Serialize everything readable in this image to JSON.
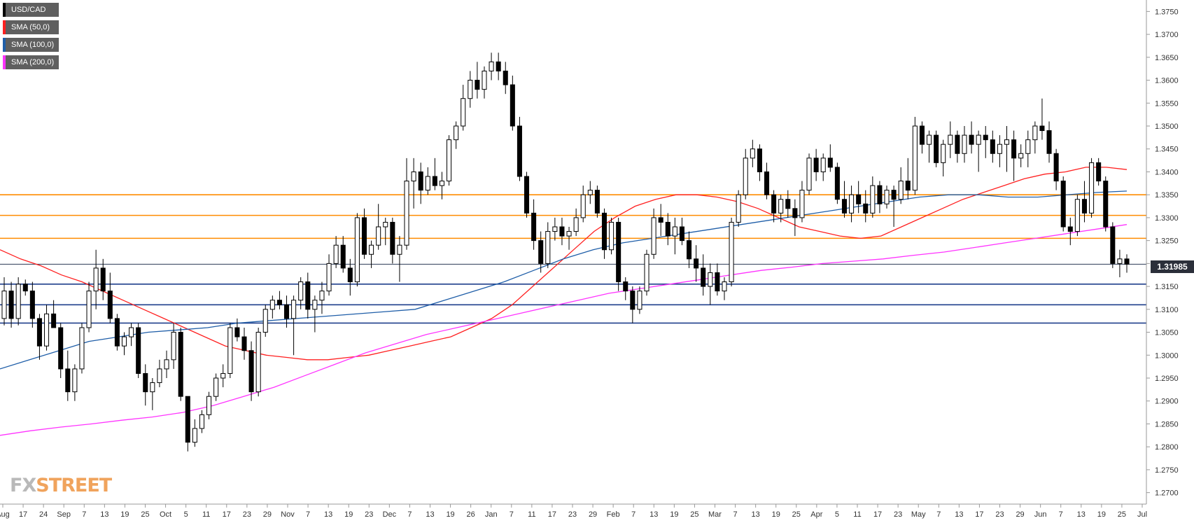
{
  "legend": [
    {
      "label": "USD/CAD",
      "color": "#000000"
    },
    {
      "label": "SMA (50,0)",
      "color": "#ff2020"
    },
    {
      "label": "SMA (100,0)",
      "color": "#1f5ea8"
    },
    {
      "label": "SMA (200,0)",
      "color": "#ff33ff"
    }
  ],
  "watermark": {
    "part1": "FX",
    "part2": "STREET"
  },
  "last_price_label": "1.31985",
  "chart_data": {
    "type": "candlestick",
    "title": "",
    "symbol": "USD/CAD",
    "ylim": [
      1.2675,
      1.3775
    ],
    "y_ticks": [
      "1.2700",
      "1.2750",
      "1.2800",
      "1.2850",
      "1.2900",
      "1.2950",
      "1.3000",
      "1.3050",
      "1.3100",
      "1.3150",
      "1.3200",
      "1.3250",
      "1.3300",
      "1.3350",
      "1.3400",
      "1.3450",
      "1.3500",
      "1.3550",
      "1.3600",
      "1.3650",
      "1.3700",
      "1.3750"
    ],
    "x_ticks": [
      "Aug",
      "17",
      "24",
      "Sep",
      "7",
      "13",
      "19",
      "25",
      "Oct",
      "5",
      "11",
      "17",
      "23",
      "29",
      "Nov",
      "7",
      "13",
      "19",
      "23",
      "Dec",
      "7",
      "13",
      "19",
      "26",
      "Jan",
      "7",
      "11",
      "17",
      "23",
      "29",
      "Feb",
      "7",
      "13",
      "19",
      "25",
      "Mar",
      "7",
      "13",
      "19",
      "25",
      "Apr",
      "5",
      "11",
      "17",
      "23",
      "May",
      "7",
      "13",
      "17",
      "23",
      "29",
      "Jun",
      "7",
      "13",
      "19",
      "25",
      "Jul"
    ],
    "date_range": [
      "2018-08-10",
      "2019-07-01"
    ],
    "horizontal_lines": {
      "resistance": [
        1.335,
        1.3305,
        1.3255
      ],
      "support": [
        1.3155,
        1.311,
        1.307
      ],
      "current": 1.31985
    },
    "candles": [
      [
        1.308,
        1.317,
        1.3065,
        1.314
      ],
      [
        1.314,
        1.316,
        1.306,
        1.308
      ],
      [
        1.308,
        1.317,
        1.3065,
        1.3155
      ],
      [
        1.3155,
        1.3165,
        1.313,
        1.314
      ],
      [
        1.314,
        1.316,
        1.306,
        1.308
      ],
      [
        1.308,
        1.309,
        1.299,
        1.302
      ],
      [
        1.302,
        1.311,
        1.301,
        1.309
      ],
      [
        1.309,
        1.312,
        1.306,
        1.306
      ],
      [
        1.306,
        1.307,
        1.295,
        1.297
      ],
      [
        1.297,
        1.301,
        1.29,
        1.292
      ],
      [
        1.292,
        1.298,
        1.29,
        1.297
      ],
      [
        1.297,
        1.307,
        1.296,
        1.306
      ],
      [
        1.306,
        1.316,
        1.305,
        1.314
      ],
      [
        1.314,
        1.323,
        1.31,
        1.319
      ],
      [
        1.319,
        1.321,
        1.312,
        1.314
      ],
      [
        1.314,
        1.318,
        1.307,
        1.308
      ],
      [
        1.308,
        1.309,
        1.301,
        1.302
      ],
      [
        1.302,
        1.305,
        1.3,
        1.304
      ],
      [
        1.304,
        1.307,
        1.302,
        1.306
      ],
      [
        1.306,
        1.307,
        1.295,
        1.296
      ],
      [
        1.296,
        1.298,
        1.289,
        1.292
      ],
      [
        1.292,
        1.295,
        1.288,
        1.294
      ],
      [
        1.294,
        1.299,
        1.293,
        1.297
      ],
      [
        1.297,
        1.301,
        1.295,
        1.299
      ],
      [
        1.299,
        1.307,
        1.297,
        1.305
      ],
      [
        1.305,
        1.306,
        1.29,
        1.291
      ],
      [
        1.291,
        1.29,
        1.279,
        1.281
      ],
      [
        1.281,
        1.286,
        1.28,
        1.284
      ],
      [
        1.284,
        1.288,
        1.283,
        1.287
      ],
      [
        1.287,
        1.292,
        1.286,
        1.291
      ],
      [
        1.291,
        1.296,
        1.29,
        1.295
      ],
      [
        1.295,
        1.298,
        1.293,
        1.296
      ],
      [
        1.296,
        1.307,
        1.295,
        1.306
      ],
      [
        1.306,
        1.308,
        1.303,
        1.304
      ],
      [
        1.304,
        1.306,
        1.299,
        1.301
      ],
      [
        1.301,
        1.303,
        1.29,
        1.292
      ],
      [
        1.292,
        1.306,
        1.291,
        1.305
      ],
      [
        1.305,
        1.311,
        1.304,
        1.31
      ],
      [
        1.31,
        1.313,
        1.308,
        1.312
      ],
      [
        1.312,
        1.314,
        1.31,
        1.311
      ],
      [
        1.311,
        1.313,
        1.306,
        1.308
      ],
      [
        1.308,
        1.313,
        1.3,
        1.312
      ],
      [
        1.312,
        1.317,
        1.31,
        1.316
      ],
      [
        1.316,
        1.318,
        1.308,
        1.31
      ],
      [
        1.31,
        1.313,
        1.305,
        1.312
      ],
      [
        1.312,
        1.316,
        1.309,
        1.314
      ],
      [
        1.314,
        1.322,
        1.313,
        1.32
      ],
      [
        1.32,
        1.326,
        1.319,
        1.324
      ],
      [
        1.324,
        1.326,
        1.318,
        1.319
      ],
      [
        1.319,
        1.321,
        1.313,
        1.316
      ],
      [
        1.316,
        1.331,
        1.315,
        1.33
      ],
      [
        1.33,
        1.332,
        1.321,
        1.322
      ],
      [
        1.322,
        1.325,
        1.319,
        1.324
      ],
      [
        1.324,
        1.333,
        1.323,
        1.328
      ],
      [
        1.328,
        1.33,
        1.324,
        1.329
      ],
      [
        1.329,
        1.33,
        1.32,
        1.322
      ],
      [
        1.322,
        1.326,
        1.316,
        1.324
      ],
      [
        1.324,
        1.343,
        1.323,
        1.338
      ],
      [
        1.338,
        1.343,
        1.332,
        1.34
      ],
      [
        1.34,
        1.342,
        1.333,
        1.336
      ],
      [
        1.336,
        1.341,
        1.335,
        1.339
      ],
      [
        1.339,
        1.343,
        1.336,
        1.337
      ],
      [
        1.337,
        1.34,
        1.334,
        1.338
      ],
      [
        1.338,
        1.348,
        1.337,
        1.347
      ],
      [
        1.347,
        1.351,
        1.345,
        1.35
      ],
      [
        1.35,
        1.359,
        1.349,
        1.356
      ],
      [
        1.356,
        1.362,
        1.354,
        1.36
      ],
      [
        1.36,
        1.364,
        1.356,
        1.358
      ],
      [
        1.358,
        1.363,
        1.356,
        1.362
      ],
      [
        1.362,
        1.366,
        1.36,
        1.364
      ],
      [
        1.364,
        1.366,
        1.36,
        1.362
      ],
      [
        1.362,
        1.364,
        1.357,
        1.359
      ],
      [
        1.359,
        1.361,
        1.349,
        1.35
      ],
      [
        1.35,
        1.352,
        1.338,
        1.339
      ],
      [
        1.339,
        1.34,
        1.33,
        1.331
      ],
      [
        1.331,
        1.334,
        1.323,
        1.325
      ],
      [
        1.325,
        1.327,
        1.318,
        1.32
      ],
      [
        1.32,
        1.329,
        1.319,
        1.327
      ],
      [
        1.327,
        1.33,
        1.325,
        1.328
      ],
      [
        1.328,
        1.33,
        1.324,
        1.326
      ],
      [
        1.326,
        1.328,
        1.323,
        1.327
      ],
      [
        1.327,
        1.332,
        1.326,
        1.33
      ],
      [
        1.33,
        1.337,
        1.329,
        1.335
      ],
      [
        1.335,
        1.338,
        1.333,
        1.336
      ],
      [
        1.336,
        1.337,
        1.33,
        1.331
      ],
      [
        1.331,
        1.332,
        1.321,
        1.323
      ],
      [
        1.323,
        1.33,
        1.322,
        1.329
      ],
      [
        1.329,
        1.33,
        1.314,
        1.316
      ],
      [
        1.316,
        1.317,
        1.312,
        1.314
      ],
      [
        1.314,
        1.315,
        1.307,
        1.31
      ],
      [
        1.31,
        1.315,
        1.309,
        1.314
      ],
      [
        1.314,
        1.323,
        1.313,
        1.322
      ],
      [
        1.322,
        1.332,
        1.321,
        1.33
      ],
      [
        1.33,
        1.333,
        1.326,
        1.329
      ],
      [
        1.329,
        1.331,
        1.324,
        1.326
      ],
      [
        1.326,
        1.33,
        1.322,
        1.328
      ],
      [
        1.328,
        1.33,
        1.324,
        1.325
      ],
      [
        1.325,
        1.327,
        1.319,
        1.321
      ],
      [
        1.321,
        1.324,
        1.316,
        1.319
      ],
      [
        1.319,
        1.322,
        1.313,
        1.315
      ],
      [
        1.315,
        1.32,
        1.311,
        1.318
      ],
      [
        1.318,
        1.32,
        1.313,
        1.314
      ],
      [
        1.314,
        1.317,
        1.312,
        1.316
      ],
      [
        1.316,
        1.33,
        1.315,
        1.329
      ],
      [
        1.329,
        1.336,
        1.328,
        1.335
      ],
      [
        1.335,
        1.345,
        1.334,
        1.343
      ],
      [
        1.343,
        1.347,
        1.341,
        1.345
      ],
      [
        1.345,
        1.346,
        1.338,
        1.34
      ],
      [
        1.34,
        1.342,
        1.334,
        1.335
      ],
      [
        1.335,
        1.336,
        1.329,
        1.331
      ],
      [
        1.331,
        1.335,
        1.329,
        1.334
      ],
      [
        1.334,
        1.336,
        1.33,
        1.332
      ],
      [
        1.332,
        1.334,
        1.326,
        1.33
      ],
      [
        1.33,
        1.338,
        1.329,
        1.336
      ],
      [
        1.336,
        1.344,
        1.335,
        1.343
      ],
      [
        1.343,
        1.345,
        1.338,
        1.34
      ],
      [
        1.34,
        1.344,
        1.338,
        1.343
      ],
      [
        1.343,
        1.346,
        1.34,
        1.341
      ],
      [
        1.341,
        1.342,
        1.333,
        1.334
      ],
      [
        1.334,
        1.338,
        1.33,
        1.331
      ],
      [
        1.331,
        1.337,
        1.329,
        1.335
      ],
      [
        1.335,
        1.338,
        1.331,
        1.333
      ],
      [
        1.333,
        1.336,
        1.329,
        1.331
      ],
      [
        1.331,
        1.339,
        1.33,
        1.337
      ],
      [
        1.337,
        1.338,
        1.331,
        1.333
      ],
      [
        1.333,
        1.337,
        1.332,
        1.336
      ],
      [
        1.336,
        1.337,
        1.328,
        1.334
      ],
      [
        1.334,
        1.341,
        1.333,
        1.338
      ],
      [
        1.338,
        1.343,
        1.334,
        1.336
      ],
      [
        1.336,
        1.352,
        1.335,
        1.35
      ],
      [
        1.35,
        1.351,
        1.344,
        1.346
      ],
      [
        1.346,
        1.349,
        1.342,
        1.348
      ],
      [
        1.348,
        1.349,
        1.341,
        1.342
      ],
      [
        1.342,
        1.347,
        1.339,
        1.346
      ],
      [
        1.346,
        1.351,
        1.343,
        1.348
      ],
      [
        1.348,
        1.349,
        1.342,
        1.344
      ],
      [
        1.344,
        1.35,
        1.342,
        1.348
      ],
      [
        1.348,
        1.351,
        1.344,
        1.346
      ],
      [
        1.346,
        1.349,
        1.34,
        1.348
      ],
      [
        1.348,
        1.35,
        1.343,
        1.347
      ],
      [
        1.347,
        1.349,
        1.342,
        1.344
      ],
      [
        1.344,
        1.348,
        1.341,
        1.346
      ],
      [
        1.346,
        1.35,
        1.34,
        1.347
      ],
      [
        1.347,
        1.349,
        1.338,
        1.343
      ],
      [
        1.343,
        1.346,
        1.341,
        1.344
      ],
      [
        1.344,
        1.349,
        1.341,
        1.347
      ],
      [
        1.347,
        1.351,
        1.344,
        1.35
      ],
      [
        1.35,
        1.356,
        1.347,
        1.349
      ],
      [
        1.349,
        1.351,
        1.342,
        1.344
      ],
      [
        1.344,
        1.345,
        1.336,
        1.338
      ],
      [
        1.338,
        1.339,
        1.327,
        1.328
      ],
      [
        1.328,
        1.33,
        1.324,
        1.327
      ],
      [
        1.327,
        1.335,
        1.326,
        1.334
      ],
      [
        1.334,
        1.338,
        1.329,
        1.331
      ],
      [
        1.331,
        1.343,
        1.33,
        1.342
      ],
      [
        1.342,
        1.343,
        1.337,
        1.338
      ],
      [
        1.338,
        1.339,
        1.327,
        1.328
      ],
      [
        1.328,
        1.329,
        1.319,
        1.32
      ],
      [
        1.32,
        1.323,
        1.317,
        1.321
      ],
      [
        1.321,
        1.322,
        1.318,
        1.31985
      ]
    ],
    "series": [
      {
        "name": "SMA (50,0)",
        "color": "#ff2020",
        "values": [
          1.323,
          1.321,
          1.3195,
          1.3175,
          1.316,
          1.314,
          1.312,
          1.31,
          1.308,
          1.306,
          1.304,
          1.302,
          1.301,
          1.3,
          1.2995,
          1.299,
          1.299,
          1.2995,
          1.3,
          1.301,
          1.302,
          1.303,
          1.304,
          1.306,
          1.308,
          1.311,
          1.315,
          1.319,
          1.323,
          1.327,
          1.33,
          1.3325,
          1.334,
          1.335,
          1.335,
          1.3345,
          1.3335,
          1.332,
          1.33,
          1.328,
          1.327,
          1.326,
          1.3255,
          1.326,
          1.328,
          1.33,
          1.332,
          1.334,
          1.3355,
          1.337,
          1.3385,
          1.3395,
          1.34,
          1.341,
          1.341,
          1.3405
        ]
      },
      {
        "name": "SMA (100,0)",
        "color": "#1f5ea8",
        "values": [
          1.297,
          1.299,
          1.301,
          1.303,
          1.304,
          1.305,
          1.3055,
          1.306,
          1.307,
          1.3075,
          1.308,
          1.3085,
          1.309,
          1.3095,
          1.31,
          1.312,
          1.314,
          1.316,
          1.3185,
          1.321,
          1.323,
          1.3245,
          1.3255,
          1.3265,
          1.3275,
          1.3285,
          1.3295,
          1.3305,
          1.3315,
          1.3325,
          1.3335,
          1.3345,
          1.335,
          1.335,
          1.3345,
          1.3345,
          1.335,
          1.3355,
          1.3358
        ]
      },
      {
        "name": "SMA (200,0)",
        "color": "#ff33ff",
        "values": [
          1.2825,
          1.2835,
          1.2843,
          1.285,
          1.2858,
          1.2865,
          1.2875,
          1.289,
          1.291,
          1.293,
          1.2955,
          1.298,
          1.3005,
          1.3025,
          1.3045,
          1.306,
          1.3075,
          1.309,
          1.3105,
          1.312,
          1.3135,
          1.3145,
          1.3155,
          1.3165,
          1.3175,
          1.3185,
          1.3192,
          1.32,
          1.3205,
          1.321,
          1.3218,
          1.3225,
          1.3235,
          1.3245,
          1.3255,
          1.3265,
          1.3275,
          1.3285
        ]
      }
    ]
  }
}
